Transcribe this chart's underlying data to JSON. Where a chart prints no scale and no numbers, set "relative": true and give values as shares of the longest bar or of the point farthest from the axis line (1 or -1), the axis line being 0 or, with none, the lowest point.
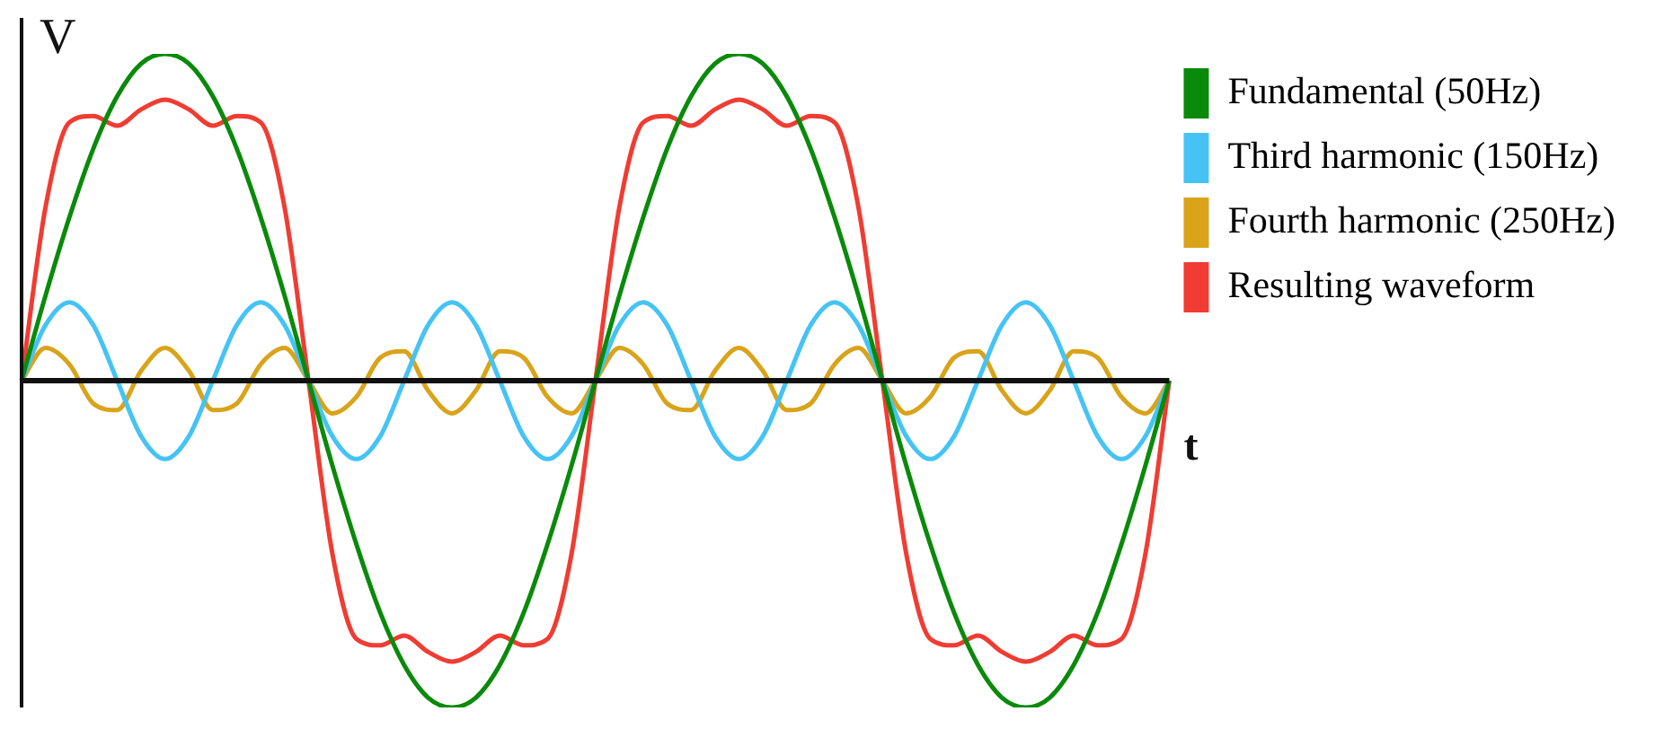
{
  "chart_data": {
    "type": "line",
    "relative": true,
    "xlabel": "t",
    "ylabel": "V",
    "legend": "top right",
    "marker": "none",
    "line_style": "solid",
    "categories": [
      null,
      null,
      null,
      null,
      null,
      null,
      null,
      null,
      null,
      null,
      null,
      null,
      null,
      null,
      null,
      null,
      null,
      null,
      null,
      null,
      null,
      null,
      null,
      null,
      null,
      null,
      null,
      null,
      null,
      null,
      null,
      null,
      null,
      null,
      null,
      null,
      null,
      null,
      null,
      null,
      null,
      null,
      null,
      null,
      null,
      null,
      null,
      null,
      null
    ],
    "series": [
      {
        "name": "Fundamental (50Hz)",
        "color": "#0a8a0a",
        "values": [
          0,
          0.26,
          0.5,
          0.71,
          0.87,
          0.97,
          1,
          0.97,
          0.87,
          0.71,
          0.5,
          0.26,
          0,
          -0.26,
          -0.5,
          -0.71,
          -0.87,
          -0.97,
          -1,
          -0.97,
          -0.87,
          -0.71,
          -0.5,
          -0.26,
          0,
          0.26,
          0.5,
          0.71,
          0.87,
          0.97,
          1,
          0.97,
          0.87,
          0.71,
          0.5,
          0.26,
          0,
          -0.26,
          -0.5,
          -0.71,
          -0.87,
          -0.97,
          -1,
          -0.97,
          -0.87,
          -0.71,
          -0.5,
          -0.26,
          0
        ]
      },
      {
        "name": "Third harmonic (150Hz)",
        "color": "#45c3f5",
        "values": [
          0,
          0.17,
          0.24,
          0.17,
          0,
          -0.17,
          -0.24,
          -0.17,
          0,
          0.17,
          0.24,
          0.17,
          0,
          -0.17,
          -0.24,
          -0.17,
          0,
          0.17,
          0.24,
          0.17,
          0,
          -0.17,
          -0.24,
          -0.17,
          0,
          0.17,
          0.24,
          0.17,
          0,
          -0.17,
          -0.24,
          -0.17,
          0,
          0.17,
          0.24,
          0.17,
          0,
          -0.17,
          -0.24,
          -0.17,
          0,
          0.17,
          0.24,
          0.17,
          0,
          -0.17,
          -0.24,
          -0.17,
          0
        ]
      },
      {
        "name": "Fourth harmonic (250Hz)",
        "color": "#d9a31a",
        "values": [
          0,
          0.1,
          0.05,
          -0.07,
          -0.09,
          0.03,
          0.1,
          0.03,
          -0.09,
          -0.07,
          0.05,
          0.1,
          0,
          -0.1,
          -0.05,
          0.07,
          0.09,
          -0.03,
          -0.1,
          -0.03,
          0.09,
          0.07,
          -0.05,
          -0.1,
          0,
          0.1,
          0.05,
          -0.07,
          -0.09,
          0.03,
          0.1,
          0.03,
          -0.09,
          -0.07,
          0.05,
          0.1,
          0,
          -0.1,
          -0.05,
          0.07,
          0.09,
          -0.03,
          -0.1,
          -0.03,
          0.09,
          0.07,
          -0.05,
          -0.1,
          0
        ]
      },
      {
        "name": "Resulting waveform",
        "color": "#f03c32",
        "values": [
          0,
          0.53,
          0.79,
          0.81,
          0.78,
          0.83,
          0.86,
          0.83,
          0.78,
          0.81,
          0.79,
          0.53,
          0,
          -0.53,
          -0.79,
          -0.81,
          -0.78,
          -0.83,
          -0.86,
          -0.83,
          -0.78,
          -0.81,
          -0.79,
          -0.53,
          0,
          0.53,
          0.79,
          0.81,
          0.78,
          0.83,
          0.86,
          0.83,
          0.78,
          0.81,
          0.79,
          0.53,
          0,
          -0.53,
          -0.79,
          -0.81,
          -0.78,
          -0.83,
          -0.86,
          -0.83,
          -0.78,
          -0.81,
          -0.79,
          -0.53,
          0
        ]
      }
    ]
  }
}
